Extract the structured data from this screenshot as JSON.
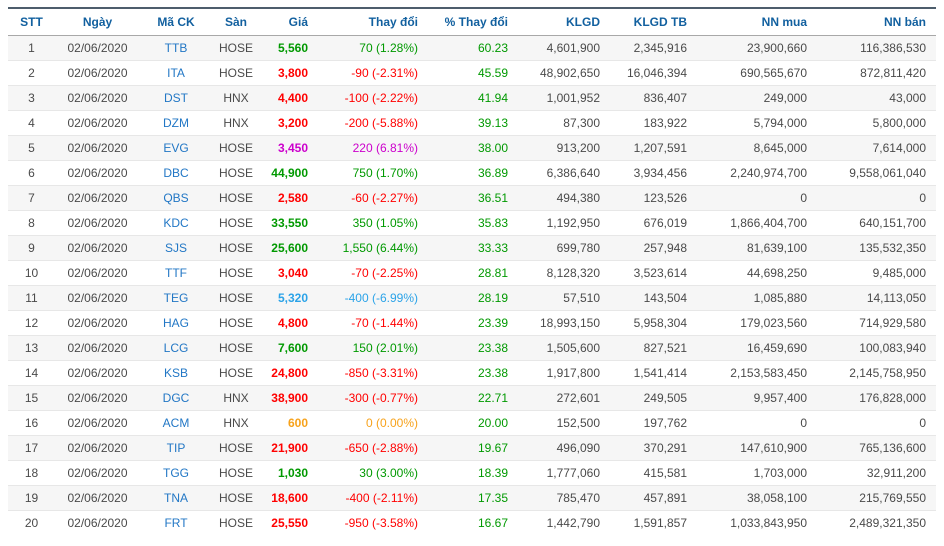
{
  "colors": {
    "header_text": "#12609f",
    "ticker": "#2277c5",
    "up": "#009900",
    "down": "#ff0000",
    "ceiling": "#cc00cc",
    "floor": "#2ba3e8",
    "reference": "#f7a21b",
    "text": "#4a4a4a",
    "stripe": "#f6f6f6",
    "top_border": "#4d5d6c"
  },
  "table": {
    "columns": [
      {
        "key": "stt",
        "label": "STT"
      },
      {
        "key": "date",
        "label": "Ngày"
      },
      {
        "key": "ticker",
        "label": "Mã CK"
      },
      {
        "key": "exchange",
        "label": "Sàn"
      },
      {
        "key": "price",
        "label": "Giá"
      },
      {
        "key": "change",
        "label": "Thay đổi"
      },
      {
        "key": "pct_change",
        "label": "% Thay đổi"
      },
      {
        "key": "klgd",
        "label": "KLGD"
      },
      {
        "key": "klgd_tb",
        "label": "KLGD TB"
      },
      {
        "key": "nn_mua",
        "label": "NN mua"
      },
      {
        "key": "nn_ban",
        "label": "NN bán"
      }
    ],
    "rows": [
      {
        "stt": "1",
        "date": "02/06/2020",
        "ticker": "TTB",
        "exchange": "HOSE",
        "price": "5,560",
        "change": "70 (1.28%)",
        "trend": "up",
        "pct_change": "60.23",
        "klgd": "4,601,900",
        "klgd_tb": "2,345,916",
        "nn_mua": "23,900,660",
        "nn_ban": "116,386,530"
      },
      {
        "stt": "2",
        "date": "02/06/2020",
        "ticker": "ITA",
        "exchange": "HOSE",
        "price": "3,800",
        "change": "-90 (-2.31%)",
        "trend": "down",
        "pct_change": "45.59",
        "klgd": "48,902,650",
        "klgd_tb": "16,046,394",
        "nn_mua": "690,565,670",
        "nn_ban": "872,811,420"
      },
      {
        "stt": "3",
        "date": "02/06/2020",
        "ticker": "DST",
        "exchange": "HNX",
        "price": "4,400",
        "change": "-100 (-2.22%)",
        "trend": "down",
        "pct_change": "41.94",
        "klgd": "1,001,952",
        "klgd_tb": "836,407",
        "nn_mua": "249,000",
        "nn_ban": "43,000"
      },
      {
        "stt": "4",
        "date": "02/06/2020",
        "ticker": "DZM",
        "exchange": "HNX",
        "price": "3,200",
        "change": "-200 (-5.88%)",
        "trend": "down",
        "pct_change": "39.13",
        "klgd": "87,300",
        "klgd_tb": "183,922",
        "nn_mua": "5,794,000",
        "nn_ban": "5,800,000"
      },
      {
        "stt": "5",
        "date": "02/06/2020",
        "ticker": "EVG",
        "exchange": "HOSE",
        "price": "3,450",
        "change": "220 (6.81%)",
        "trend": "ceiling",
        "pct_change": "38.00",
        "klgd": "913,200",
        "klgd_tb": "1,207,591",
        "nn_mua": "8,645,000",
        "nn_ban": "7,614,000"
      },
      {
        "stt": "6",
        "date": "02/06/2020",
        "ticker": "DBC",
        "exchange": "HOSE",
        "price": "44,900",
        "change": "750 (1.70%)",
        "trend": "up",
        "pct_change": "36.89",
        "klgd": "6,386,640",
        "klgd_tb": "3,934,456",
        "nn_mua": "2,240,974,700",
        "nn_ban": "9,558,061,040"
      },
      {
        "stt": "7",
        "date": "02/06/2020",
        "ticker": "QBS",
        "exchange": "HOSE",
        "price": "2,580",
        "change": "-60 (-2.27%)",
        "trend": "down",
        "pct_change": "36.51",
        "klgd": "494,380",
        "klgd_tb": "123,526",
        "nn_mua": "0",
        "nn_ban": "0"
      },
      {
        "stt": "8",
        "date": "02/06/2020",
        "ticker": "KDC",
        "exchange": "HOSE",
        "price": "33,550",
        "change": "350 (1.05%)",
        "trend": "up",
        "pct_change": "35.83",
        "klgd": "1,192,950",
        "klgd_tb": "676,019",
        "nn_mua": "1,866,404,700",
        "nn_ban": "640,151,700"
      },
      {
        "stt": "9",
        "date": "02/06/2020",
        "ticker": "SJS",
        "exchange": "HOSE",
        "price": "25,600",
        "change": "1,550 (6.44%)",
        "trend": "up",
        "pct_change": "33.33",
        "klgd": "699,780",
        "klgd_tb": "257,948",
        "nn_mua": "81,639,100",
        "nn_ban": "135,532,350"
      },
      {
        "stt": "10",
        "date": "02/06/2020",
        "ticker": "TTF",
        "exchange": "HOSE",
        "price": "3,040",
        "change": "-70 (-2.25%)",
        "trend": "down",
        "pct_change": "28.81",
        "klgd": "8,128,320",
        "klgd_tb": "3,523,614",
        "nn_mua": "44,698,250",
        "nn_ban": "9,485,000"
      },
      {
        "stt": "11",
        "date": "02/06/2020",
        "ticker": "TEG",
        "exchange": "HOSE",
        "price": "5,320",
        "change": "-400 (-6.99%)",
        "trend": "floor",
        "pct_change": "28.19",
        "klgd": "57,510",
        "klgd_tb": "143,504",
        "nn_mua": "1,085,880",
        "nn_ban": "14,113,050"
      },
      {
        "stt": "12",
        "date": "02/06/2020",
        "ticker": "HAG",
        "exchange": "HOSE",
        "price": "4,800",
        "change": "-70 (-1.44%)",
        "trend": "down",
        "pct_change": "23.39",
        "klgd": "18,993,150",
        "klgd_tb": "5,958,304",
        "nn_mua": "179,023,560",
        "nn_ban": "714,929,580"
      },
      {
        "stt": "13",
        "date": "02/06/2020",
        "ticker": "LCG",
        "exchange": "HOSE",
        "price": "7,600",
        "change": "150 (2.01%)",
        "trend": "up",
        "pct_change": "23.38",
        "klgd": "1,505,600",
        "klgd_tb": "827,521",
        "nn_mua": "16,459,690",
        "nn_ban": "100,083,940"
      },
      {
        "stt": "14",
        "date": "02/06/2020",
        "ticker": "KSB",
        "exchange": "HOSE",
        "price": "24,800",
        "change": "-850 (-3.31%)",
        "trend": "down",
        "pct_change": "23.38",
        "klgd": "1,917,800",
        "klgd_tb": "1,541,414",
        "nn_mua": "2,153,583,450",
        "nn_ban": "2,145,758,950"
      },
      {
        "stt": "15",
        "date": "02/06/2020",
        "ticker": "DGC",
        "exchange": "HNX",
        "price": "38,900",
        "change": "-300 (-0.77%)",
        "trend": "down",
        "pct_change": "22.71",
        "klgd": "272,601",
        "klgd_tb": "249,505",
        "nn_mua": "9,957,400",
        "nn_ban": "176,828,000"
      },
      {
        "stt": "16",
        "date": "02/06/2020",
        "ticker": "ACM",
        "exchange": "HNX",
        "price": "600",
        "change": "0 (0.00%)",
        "trend": "reference",
        "pct_change": "20.00",
        "klgd": "152,500",
        "klgd_tb": "197,762",
        "nn_mua": "0",
        "nn_ban": "0"
      },
      {
        "stt": "17",
        "date": "02/06/2020",
        "ticker": "TIP",
        "exchange": "HOSE",
        "price": "21,900",
        "change": "-650 (-2.88%)",
        "trend": "down",
        "pct_change": "19.67",
        "klgd": "496,090",
        "klgd_tb": "370,291",
        "nn_mua": "147,610,900",
        "nn_ban": "765,136,600"
      },
      {
        "stt": "18",
        "date": "02/06/2020",
        "ticker": "TGG",
        "exchange": "HOSE",
        "price": "1,030",
        "change": "30 (3.00%)",
        "trend": "up",
        "pct_change": "18.39",
        "klgd": "1,777,060",
        "klgd_tb": "415,581",
        "nn_mua": "1,703,000",
        "nn_ban": "32,911,200"
      },
      {
        "stt": "19",
        "date": "02/06/2020",
        "ticker": "TNA",
        "exchange": "HOSE",
        "price": "18,600",
        "change": "-400 (-2.11%)",
        "trend": "down",
        "pct_change": "17.35",
        "klgd": "785,470",
        "klgd_tb": "457,891",
        "nn_mua": "38,058,100",
        "nn_ban": "215,769,550"
      },
      {
        "stt": "20",
        "date": "02/06/2020",
        "ticker": "FRT",
        "exchange": "HOSE",
        "price": "25,550",
        "change": "-950 (-3.58%)",
        "trend": "down",
        "pct_change": "16.67",
        "klgd": "1,442,790",
        "klgd_tb": "1,591,857",
        "nn_mua": "1,033,843,950",
        "nn_ban": "2,489,321,350"
      }
    ]
  }
}
